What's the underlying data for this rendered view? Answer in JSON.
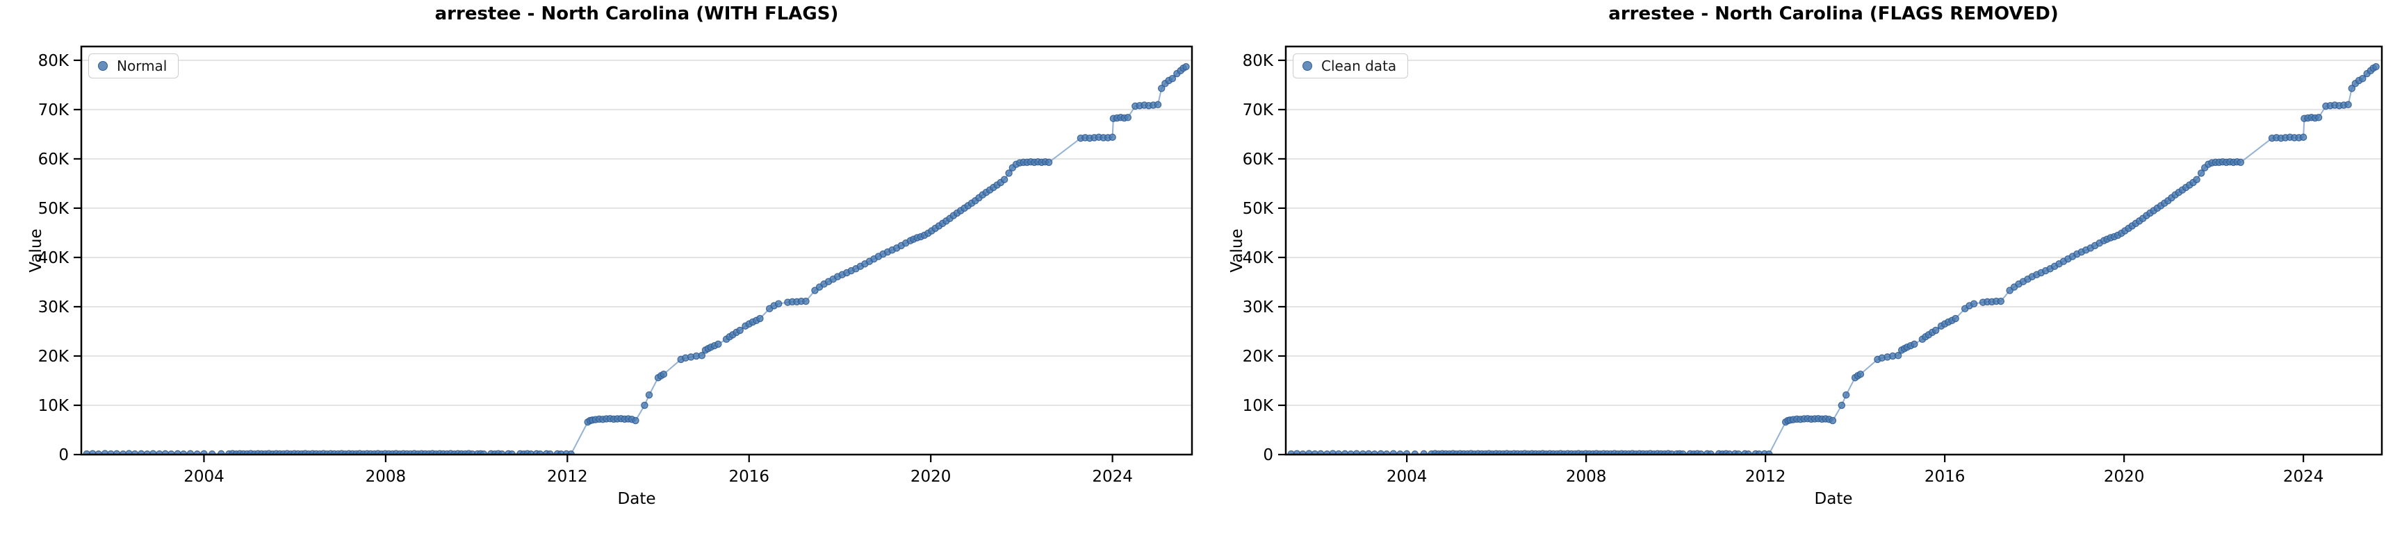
{
  "figure": {
    "background": "#ffffff",
    "colors": {
      "marker_fill": "#4A7AAF",
      "marker_edge": "#2F5B94",
      "line": "#8AA9CF",
      "grid": "#E3E3E3",
      "spine": "#000000",
      "text": "#000000",
      "legend_border": "#CCCCCC"
    }
  },
  "charts": [
    {
      "title": "arrestee - North Carolina (WITH FLAGS)",
      "legend_label": "Normal",
      "xlabel": "Date",
      "ylabel": "Value"
    },
    {
      "title": "arrestee - North Carolina (FLAGS REMOVED)",
      "legend_label": "Clean data",
      "xlabel": "Date",
      "ylabel": "Value"
    }
  ],
  "chart_data": {
    "type": "scatter",
    "note": "Both panels display the same cumulative time series; values are in thousands. Near-zero until early 2012, step to ~7K plateau (2012-2013.5), staircase growth to ~78.6K by mid-2025.",
    "x_unit": "year",
    "values_in_thousands": true,
    "xlim": [
      2001.3,
      2025.75
    ],
    "ylim": [
      0,
      82.8
    ],
    "xticks": [
      2004,
      2008,
      2012,
      2016,
      2020,
      2024
    ],
    "xtick_labels": [
      "2004",
      "2008",
      "2012",
      "2016",
      "2020",
      "2024"
    ],
    "yticks": [
      0,
      10,
      20,
      30,
      40,
      50,
      60,
      70,
      80
    ],
    "ytick_labels": [
      "0",
      "10K",
      "20K",
      "30K",
      "40K",
      "50K",
      "60K",
      "70K",
      "80K"
    ],
    "grid": "horizontal",
    "legend_position": "upper-left",
    "points": [
      [
        2001.42,
        0.12
      ],
      [
        2001.55,
        0.18
      ],
      [
        2001.68,
        0.1
      ],
      [
        2001.82,
        0.2
      ],
      [
        2001.95,
        0.12
      ],
      [
        2002.08,
        0.16
      ],
      [
        2002.22,
        0.1
      ],
      [
        2002.35,
        0.2
      ],
      [
        2002.48,
        0.12
      ],
      [
        2002.62,
        0.16
      ],
      [
        2002.75,
        0.1
      ],
      [
        2002.88,
        0.18
      ],
      [
        2003.02,
        0.12
      ],
      [
        2003.15,
        0.16
      ],
      [
        2003.28,
        0.1
      ],
      [
        2003.42,
        0.15
      ],
      [
        2003.55,
        0.1
      ],
      [
        2003.7,
        0.18
      ],
      [
        2003.85,
        0.1
      ],
      [
        2004.0,
        0.15
      ],
      [
        2004.18,
        0.1
      ],
      [
        2004.38,
        0.15
      ],
      [
        2004.55,
        0.12
      ],
      [
        2004.63,
        0.2
      ],
      [
        2004.71,
        0.1
      ],
      [
        2004.79,
        0.18
      ],
      [
        2004.87,
        0.14
      ],
      [
        2004.95,
        0.12
      ],
      [
        2005.03,
        0.2
      ],
      [
        2005.11,
        0.1
      ],
      [
        2005.19,
        0.18
      ],
      [
        2005.27,
        0.14
      ],
      [
        2005.35,
        0.12
      ],
      [
        2005.43,
        0.2
      ],
      [
        2005.51,
        0.1
      ],
      [
        2005.59,
        0.18
      ],
      [
        2005.67,
        0.14
      ],
      [
        2005.75,
        0.12
      ],
      [
        2005.83,
        0.2
      ],
      [
        2005.91,
        0.1
      ],
      [
        2005.99,
        0.18
      ],
      [
        2006.07,
        0.14
      ],
      [
        2006.15,
        0.12
      ],
      [
        2006.23,
        0.2
      ],
      [
        2006.31,
        0.1
      ],
      [
        2006.39,
        0.18
      ],
      [
        2006.47,
        0.14
      ],
      [
        2006.55,
        0.12
      ],
      [
        2006.63,
        0.2
      ],
      [
        2006.71,
        0.1
      ],
      [
        2006.79,
        0.18
      ],
      [
        2006.87,
        0.14
      ],
      [
        2006.95,
        0.12
      ],
      [
        2007.03,
        0.2
      ],
      [
        2007.11,
        0.1
      ],
      [
        2007.19,
        0.18
      ],
      [
        2007.27,
        0.14
      ],
      [
        2007.35,
        0.12
      ],
      [
        2007.43,
        0.2
      ],
      [
        2007.51,
        0.1
      ],
      [
        2007.59,
        0.18
      ],
      [
        2007.67,
        0.14
      ],
      [
        2007.75,
        0.12
      ],
      [
        2007.83,
        0.2
      ],
      [
        2007.91,
        0.1
      ],
      [
        2007.99,
        0.18
      ],
      [
        2008.07,
        0.14
      ],
      [
        2008.15,
        0.12
      ],
      [
        2008.23,
        0.2
      ],
      [
        2008.31,
        0.1
      ],
      [
        2008.39,
        0.18
      ],
      [
        2008.47,
        0.14
      ],
      [
        2008.55,
        0.12
      ],
      [
        2008.63,
        0.2
      ],
      [
        2008.71,
        0.1
      ],
      [
        2008.79,
        0.18
      ],
      [
        2008.87,
        0.14
      ],
      [
        2008.95,
        0.12
      ],
      [
        2009.03,
        0.2
      ],
      [
        2009.11,
        0.1
      ],
      [
        2009.19,
        0.18
      ],
      [
        2009.27,
        0.14
      ],
      [
        2009.35,
        0.12
      ],
      [
        2009.43,
        0.2
      ],
      [
        2009.51,
        0.1
      ],
      [
        2009.59,
        0.18
      ],
      [
        2009.67,
        0.14
      ],
      [
        2009.75,
        0.12
      ],
      [
        2009.83,
        0.2
      ],
      [
        2009.91,
        0.1
      ],
      [
        2010.02,
        0.12
      ],
      [
        2010.09,
        0.16
      ],
      [
        2010.16,
        0.1
      ],
      [
        2010.32,
        0.15
      ],
      [
        2010.4,
        0.1
      ],
      [
        2010.48,
        0.18
      ],
      [
        2010.56,
        0.1
      ],
      [
        2010.7,
        0.15
      ],
      [
        2010.78,
        0.1
      ],
      [
        2010.96,
        0.15
      ],
      [
        2011.04,
        0.1
      ],
      [
        2011.12,
        0.18
      ],
      [
        2011.2,
        0.1
      ],
      [
        2011.32,
        0.15
      ],
      [
        2011.4,
        0.1
      ],
      [
        2011.54,
        0.15
      ],
      [
        2011.62,
        0.1
      ],
      [
        2011.78,
        0.14
      ],
      [
        2011.86,
        0.1
      ],
      [
        2011.98,
        0.14
      ],
      [
        2012.08,
        0.1
      ],
      [
        2012.45,
        6.6
      ],
      [
        2012.5,
        6.9
      ],
      [
        2012.55,
        7.0
      ],
      [
        2012.62,
        7.1
      ],
      [
        2012.7,
        7.2
      ],
      [
        2012.78,
        7.15
      ],
      [
        2012.86,
        7.25
      ],
      [
        2012.94,
        7.3
      ],
      [
        2013.02,
        7.2
      ],
      [
        2013.1,
        7.25
      ],
      [
        2013.18,
        7.3
      ],
      [
        2013.26,
        7.2
      ],
      [
        2013.34,
        7.25
      ],
      [
        2013.42,
        7.15
      ],
      [
        2013.5,
        6.9
      ],
      [
        2013.7,
        10.0
      ],
      [
        2013.8,
        12.1
      ],
      [
        2014.0,
        15.6
      ],
      [
        2014.06,
        16.0
      ],
      [
        2014.12,
        16.3
      ],
      [
        2014.5,
        19.3
      ],
      [
        2014.6,
        19.6
      ],
      [
        2014.72,
        19.8
      ],
      [
        2014.84,
        20.0
      ],
      [
        2014.96,
        20.1
      ],
      [
        2015.04,
        21.2
      ],
      [
        2015.1,
        21.5
      ],
      [
        2015.16,
        21.8
      ],
      [
        2015.24,
        22.1
      ],
      [
        2015.32,
        22.4
      ],
      [
        2015.5,
        23.4
      ],
      [
        2015.57,
        23.9
      ],
      [
        2015.64,
        24.3
      ],
      [
        2015.72,
        24.8
      ],
      [
        2015.8,
        25.2
      ],
      [
        2015.92,
        26.1
      ],
      [
        2016.0,
        26.5
      ],
      [
        2016.08,
        26.9
      ],
      [
        2016.16,
        27.2
      ],
      [
        2016.24,
        27.6
      ],
      [
        2016.45,
        29.6
      ],
      [
        2016.55,
        30.2
      ],
      [
        2016.65,
        30.6
      ],
      [
        2016.85,
        30.9
      ],
      [
        2016.95,
        31.0
      ],
      [
        2017.05,
        31.0
      ],
      [
        2017.15,
        31.1
      ],
      [
        2017.25,
        31.1
      ],
      [
        2017.45,
        33.3
      ],
      [
        2017.55,
        34.0
      ],
      [
        2017.65,
        34.6
      ],
      [
        2017.75,
        35.1
      ],
      [
        2017.85,
        35.6
      ],
      [
        2017.95,
        36.1
      ],
      [
        2018.05,
        36.5
      ],
      [
        2018.15,
        36.9
      ],
      [
        2018.25,
        37.3
      ],
      [
        2018.35,
        37.7
      ],
      [
        2018.45,
        38.2
      ],
      [
        2018.55,
        38.7
      ],
      [
        2018.65,
        39.2
      ],
      [
        2018.75,
        39.7
      ],
      [
        2018.85,
        40.2
      ],
      [
        2018.95,
        40.7
      ],
      [
        2019.05,
        41.1
      ],
      [
        2019.15,
        41.5
      ],
      [
        2019.25,
        41.9
      ],
      [
        2019.35,
        42.4
      ],
      [
        2019.45,
        42.9
      ],
      [
        2019.55,
        43.4
      ],
      [
        2019.62,
        43.7
      ],
      [
        2019.7,
        44.0
      ],
      [
        2019.78,
        44.2
      ],
      [
        2019.86,
        44.5
      ],
      [
        2019.94,
        44.9
      ],
      [
        2020.02,
        45.4
      ],
      [
        2020.1,
        45.9
      ],
      [
        2020.18,
        46.4
      ],
      [
        2020.26,
        46.9
      ],
      [
        2020.34,
        47.4
      ],
      [
        2020.42,
        47.9
      ],
      [
        2020.5,
        48.5
      ],
      [
        2020.58,
        49.0
      ],
      [
        2020.66,
        49.5
      ],
      [
        2020.74,
        50.0
      ],
      [
        2020.82,
        50.5
      ],
      [
        2020.9,
        51.0
      ],
      [
        2020.98,
        51.5
      ],
      [
        2021.06,
        52.1
      ],
      [
        2021.14,
        52.7
      ],
      [
        2021.22,
        53.2
      ],
      [
        2021.3,
        53.7
      ],
      [
        2021.38,
        54.2
      ],
      [
        2021.46,
        54.7
      ],
      [
        2021.54,
        55.2
      ],
      [
        2021.62,
        55.8
      ],
      [
        2021.72,
        57.1
      ],
      [
        2021.8,
        58.2
      ],
      [
        2021.88,
        58.9
      ],
      [
        2021.96,
        59.2
      ],
      [
        2022.04,
        59.3
      ],
      [
        2022.12,
        59.3
      ],
      [
        2022.2,
        59.4
      ],
      [
        2022.28,
        59.3
      ],
      [
        2022.36,
        59.4
      ],
      [
        2022.44,
        59.3
      ],
      [
        2022.52,
        59.4
      ],
      [
        2022.6,
        59.3
      ],
      [
        2023.3,
        64.2
      ],
      [
        2023.4,
        64.3
      ],
      [
        2023.5,
        64.2
      ],
      [
        2023.6,
        64.3
      ],
      [
        2023.7,
        64.4
      ],
      [
        2023.8,
        64.3
      ],
      [
        2023.9,
        64.3
      ],
      [
        2024.0,
        64.4
      ],
      [
        2024.02,
        68.2
      ],
      [
        2024.1,
        68.3
      ],
      [
        2024.18,
        68.4
      ],
      [
        2024.26,
        68.3
      ],
      [
        2024.34,
        68.4
      ],
      [
        2024.5,
        70.7
      ],
      [
        2024.6,
        70.8
      ],
      [
        2024.7,
        70.9
      ],
      [
        2024.8,
        70.8
      ],
      [
        2024.9,
        70.9
      ],
      [
        2025.0,
        71.0
      ],
      [
        2025.08,
        74.3
      ],
      [
        2025.16,
        75.3
      ],
      [
        2025.24,
        75.9
      ],
      [
        2025.32,
        76.3
      ],
      [
        2025.42,
        77.3
      ],
      [
        2025.5,
        77.9
      ],
      [
        2025.56,
        78.4
      ],
      [
        2025.62,
        78.7
      ]
    ]
  }
}
